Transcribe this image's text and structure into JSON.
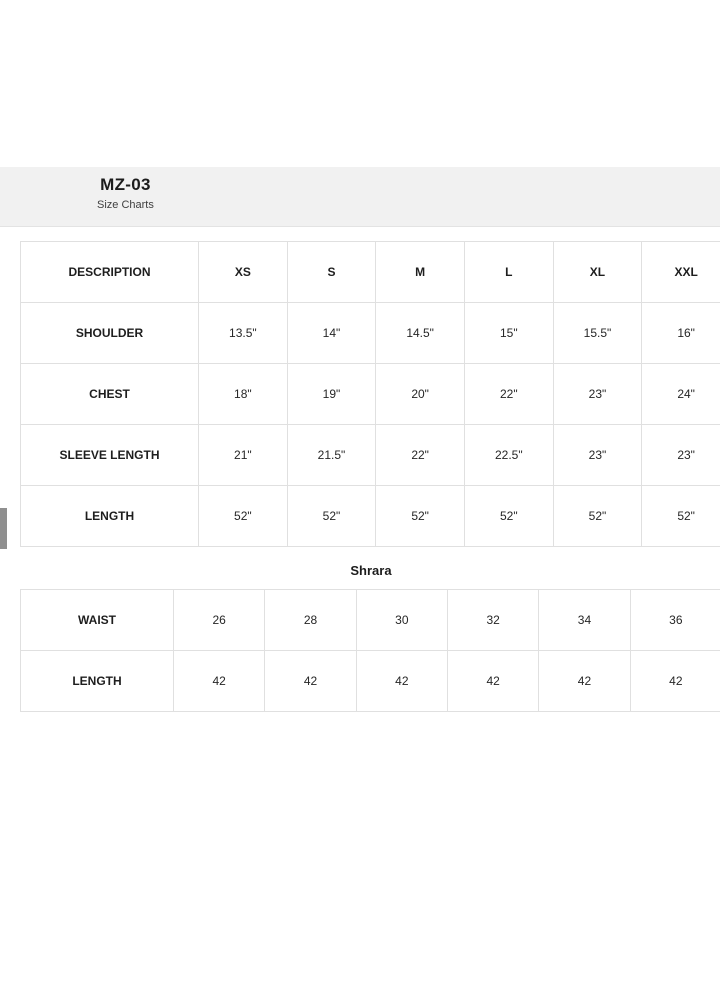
{
  "modal": {
    "title": "MZ-03",
    "subtitle": "Size Charts",
    "close_icon": "✕"
  },
  "size_chart": {
    "columns": [
      "DESCRIPTION",
      "XS",
      "S",
      "M",
      "L",
      "XL",
      "XXL"
    ],
    "rows": [
      {
        "label": "SHOULDER",
        "values": [
          "13.5\"",
          "14\"",
          "14.5\"",
          "15\"",
          "15.5\"",
          "16\""
        ]
      },
      {
        "label": "CHEST",
        "values": [
          "18\"",
          "19\"",
          "20\"",
          "22\"",
          "23\"",
          "24\""
        ]
      },
      {
        "label": "SLEEVE LENGTH",
        "values": [
          "21\"",
          "21.5\"",
          "22\"",
          "22.5\"",
          "23\"",
          "23\""
        ]
      },
      {
        "label": "LENGTH",
        "values": [
          "52\"",
          "52\"",
          "52\"",
          "52\"",
          "52\"",
          "52\""
        ]
      }
    ]
  },
  "shrara_chart": {
    "heading": "Shrara",
    "rows": [
      {
        "label": "WAIST",
        "values": [
          "26",
          "28",
          "30",
          "32",
          "34",
          "36"
        ]
      },
      {
        "label": "LENGTH",
        "values": [
          "42",
          "42",
          "42",
          "42",
          "42",
          "42"
        ]
      }
    ]
  },
  "colors": {
    "header_background": "#f1f1f1",
    "table_border": "#e0e0e0",
    "text": "#1e1e1e",
    "scrollbar_thumb": "#8f8f8f",
    "page_background": "#ffffff"
  }
}
